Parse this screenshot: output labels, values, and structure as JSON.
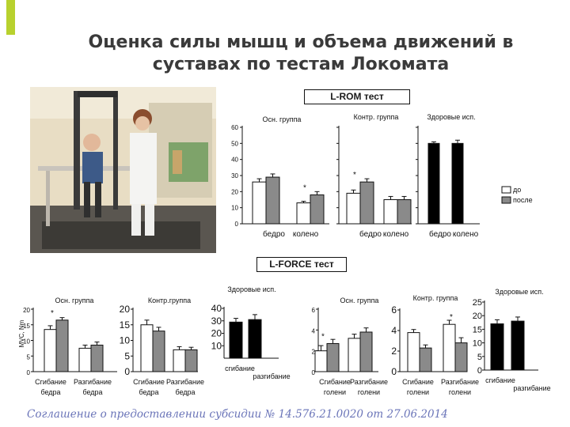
{
  "title": {
    "line1": "Оценка силы мышц и объема движений в",
    "line2": "суставах по тестам Локомата"
  },
  "rom_label": "L-ROM тест",
  "force_label": "L-FORCE тест",
  "footer": "Соглашение о предоставлении субсидии № 14.576.21.0020 от 27.06.2014",
  "photo": {
    "description_icon": "locomat-photo-icon"
  },
  "colors": {
    "accent": "#b8d12e",
    "before": "#ffffff",
    "after": "#8a8a8a",
    "healthy": "#000000",
    "footer": "#6a74b8"
  },
  "chart_data": [
    {
      "id": "rom-main",
      "type": "bar",
      "ylim": [
        0,
        60
      ],
      "yticks": [
        "0",
        "10",
        "20",
        "30",
        "40",
        "50",
        "60"
      ],
      "legend": [
        "до",
        "после"
      ],
      "legend_position": "right",
      "panels": [
        {
          "title": "Осн. группа",
          "categories": [
            "бедро",
            "колено"
          ],
          "series": [
            {
              "name": "до",
              "values": [
                26,
                13
              ]
            },
            {
              "name": "после",
              "values": [
                29,
                18
              ]
            }
          ],
          "errors": [
            [
              2,
              1
            ],
            [
              2,
              2
            ]
          ],
          "star_marks": [
            "колено"
          ]
        },
        {
          "title": "Контр. группа",
          "categories": [
            "бедро",
            "колено"
          ],
          "series": [
            {
              "name": "до",
              "values": [
                19,
                15
              ]
            },
            {
              "name": "после",
              "values": [
                26,
                15
              ]
            }
          ],
          "errors": [
            [
              2,
              2
            ],
            [
              2,
              2
            ]
          ],
          "star_marks": [
            "бедро"
          ]
        },
        {
          "title": "Здоровые исп.",
          "categories": [
            "бедро",
            "колено"
          ],
          "series": [
            {
              "name": "",
              "values": [
                50,
                50
              ]
            }
          ],
          "errors": [
            [
              1,
              2
            ]
          ],
          "star_marks": []
        }
      ]
    },
    {
      "id": "force-main",
      "type": "bar",
      "ylabel": "MVC, Nm",
      "panels": [
        {
          "title": "Осн. группа",
          "yticks": [
            "0",
            "5",
            "10",
            "15",
            "20"
          ],
          "ylim": [
            0,
            20
          ],
          "categories": [
            "Сгибание бедра",
            "Разгибание бедра"
          ],
          "series": [
            {
              "name": "до",
              "values": [
                13.5,
                7.5
              ]
            },
            {
              "name": "после",
              "values": [
                16.5,
                8.5
              ]
            }
          ],
          "errors": [
            [
              1.2,
              1
            ],
            [
              0.8,
              1
            ]
          ],
          "star_marks": [
            "Сгибание бедра"
          ]
        },
        {
          "title": "Контр.группа",
          "yticks": [
            "0",
            "5",
            "10",
            "15",
            "20"
          ],
          "ylim": [
            0,
            20
          ],
          "categories": [
            "Сгибание бедра",
            "Разгибание бедра"
          ],
          "series": [
            {
              "name": "до",
              "values": [
                15,
                7
              ]
            },
            {
              "name": "после",
              "values": [
                13,
                7
              ]
            }
          ],
          "errors": [
            [
              1.5,
              1
            ],
            [
              1.2,
              0.8
            ]
          ],
          "star_marks": []
        },
        {
          "title": "Здоровые исп.",
          "yticks": [
            "10",
            "20",
            "30",
            "40"
          ],
          "ylim": [
            0,
            40
          ],
          "categories": [
            "сгибание",
            "разгибание"
          ],
          "series": [
            {
              "name": "",
              "values": [
                29,
                31
              ]
            }
          ],
          "errors": [
            [
              3,
              4
            ]
          ],
          "star_marks": []
        },
        {
          "title": "Осн. группа",
          "yticks": [
            "0",
            "2",
            "4",
            "6"
          ],
          "ylim": [
            0,
            6
          ],
          "categories": [
            "Сгибание голени",
            "Разгибание голени"
          ],
          "series": [
            {
              "name": "до",
              "values": [
                2,
                3.2
              ]
            },
            {
              "name": "после",
              "values": [
                2.7,
                3.8
              ]
            }
          ],
          "errors": [
            [
              0.5,
              0.4
            ],
            [
              0.4,
              0.4
            ]
          ],
          "star_marks": [
            "Сгибание голени"
          ]
        },
        {
          "title": "Контр. группа",
          "yticks": [
            "0",
            "2",
            "4",
            "6"
          ],
          "ylim": [
            0,
            6
          ],
          "categories": [
            "Сгибание голени",
            "Разгибание голени"
          ],
          "series": [
            {
              "name": "до",
              "values": [
                3.8,
                4.6
              ]
            },
            {
              "name": "после",
              "values": [
                2.3,
                2.8
              ]
            }
          ],
          "errors": [
            [
              0.3,
              0.4
            ],
            [
              0.3,
              0.5
            ]
          ],
          "star_marks": [
            "Разгибание голени"
          ]
        },
        {
          "title": "Здоровые исп.",
          "yticks": [
            "0",
            "5",
            "10",
            "15",
            "20",
            "25"
          ],
          "ylim": [
            0,
            25
          ],
          "categories": [
            "сгибание",
            "разгибание"
          ],
          "series": [
            {
              "name": "",
              "values": [
                17,
                18
              ]
            }
          ],
          "errors": [
            [
              1.5,
              1.5
            ]
          ],
          "star_marks": []
        }
      ]
    }
  ]
}
